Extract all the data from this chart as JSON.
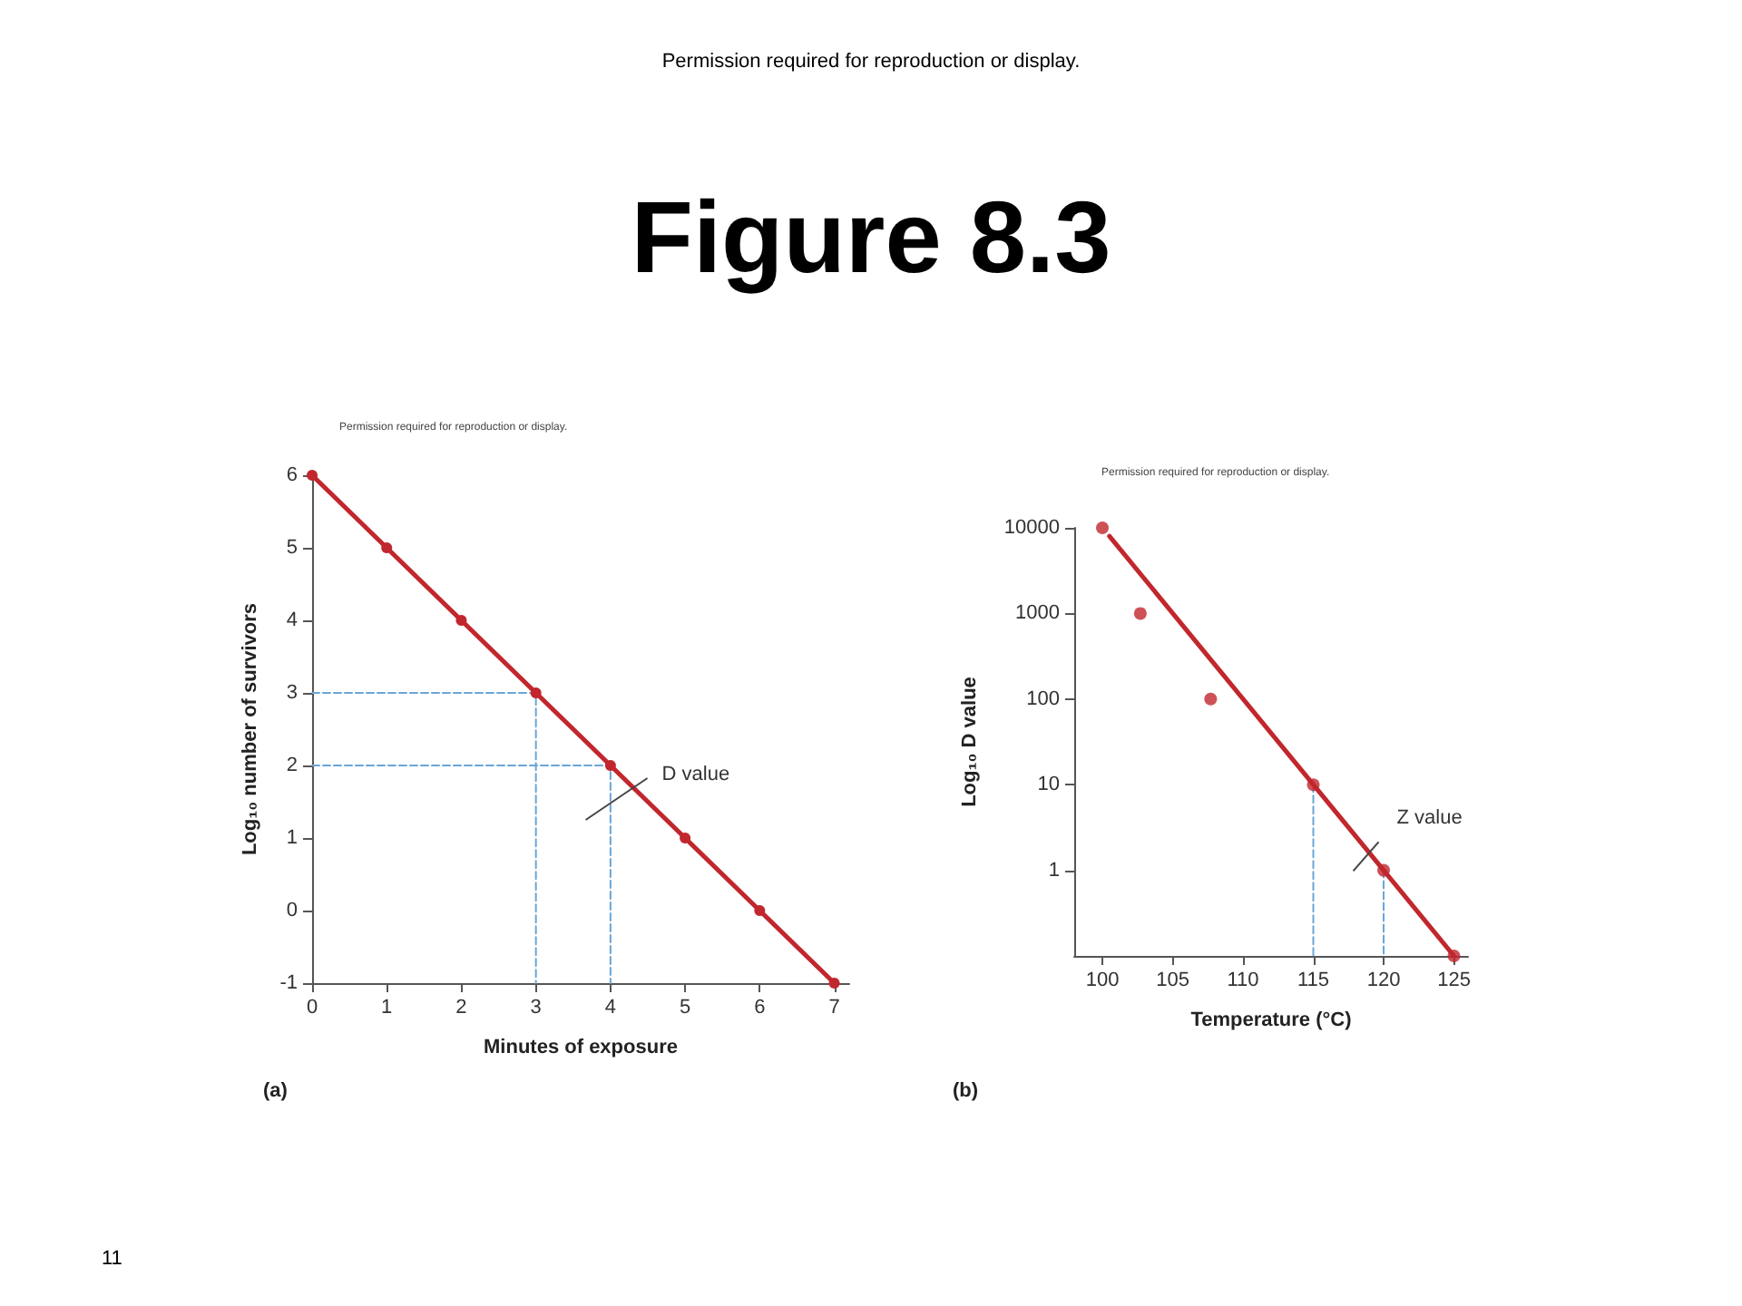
{
  "chart_data": [
    {
      "type": "other",
      "title": "Figure 8.3",
      "annotations": [
        "Permission required for reproduction or display.",
        "11"
      ]
    },
    {
      "type": "line",
      "xlabel": "Minutes of exposure",
      "ylabel": "Log₁₀ number of survivors",
      "xlim": [
        0,
        7.2
      ],
      "ylim": [
        -1,
        6
      ],
      "xticks": [
        0,
        1,
        2,
        3,
        4,
        5,
        6,
        7
      ],
      "yticks": [
        -1,
        0,
        1,
        2,
        3,
        4,
        5,
        6
      ],
      "series": [
        {
          "type": "line",
          "color": "#c1272d",
          "marker": "circle",
          "line_style": "solid",
          "x": [
            0,
            1,
            2,
            3,
            4,
            5,
            6,
            7
          ],
          "values": [
            6,
            5,
            4,
            3,
            2,
            1,
            0,
            -1
          ]
        },
        {
          "type": "line",
          "color": "#6aa6d6",
          "marker": "none",
          "line_style": "dashed",
          "x": [
            0,
            3,
            3
          ],
          "values": [
            3,
            3,
            -1
          ]
        },
        {
          "type": "line",
          "color": "#6aa6d6",
          "marker": "none",
          "line_style": "dashed",
          "x": [
            0,
            4,
            4
          ],
          "values": [
            2,
            2,
            -1
          ]
        }
      ],
      "annotations": [
        "Permission required for reproduction or display.",
        "(a)",
        {
          "text": "D value",
          "x": 4.3,
          "y": 1.7
        }
      ]
    },
    {
      "type": "scatter",
      "xlabel": "Temperature (°C)",
      "ylabel": "Log₁₀ D value",
      "log": "y",
      "xlim": [
        98,
        126
      ],
      "ylim": [
        0.1,
        10000
      ],
      "xticks": [
        100,
        105,
        110,
        115,
        120,
        125
      ],
      "yticks": [
        1,
        10,
        100,
        1000,
        10000
      ],
      "series": [
        {
          "type": "scatter",
          "color": "#c1272d",
          "marker": "circle",
          "x": [
            100,
            102.7,
            107.7,
            115,
            120,
            125
          ],
          "values": [
            10000,
            1000,
            100,
            10,
            1,
            0.1
          ]
        },
        {
          "type": "line",
          "color": "#c1272d",
          "marker": "none",
          "line_style": "solid",
          "x": [
            100.5,
            125
          ],
          "values": [
            8000,
            0.1
          ]
        },
        {
          "type": "line",
          "color": "#6aa6d6",
          "marker": "none",
          "line_style": "dashed",
          "x": [
            115,
            115
          ],
          "values": [
            10,
            0.1
          ]
        },
        {
          "type": "line",
          "color": "#6aa6d6",
          "marker": "none",
          "line_style": "dashed",
          "x": [
            120,
            120
          ],
          "values": [
            1,
            0.1
          ]
        }
      ],
      "annotations": [
        "Permission required for reproduction or display.",
        "(b)",
        {
          "text": "Z value",
          "x": 119,
          "y": 1.6
        }
      ]
    }
  ]
}
